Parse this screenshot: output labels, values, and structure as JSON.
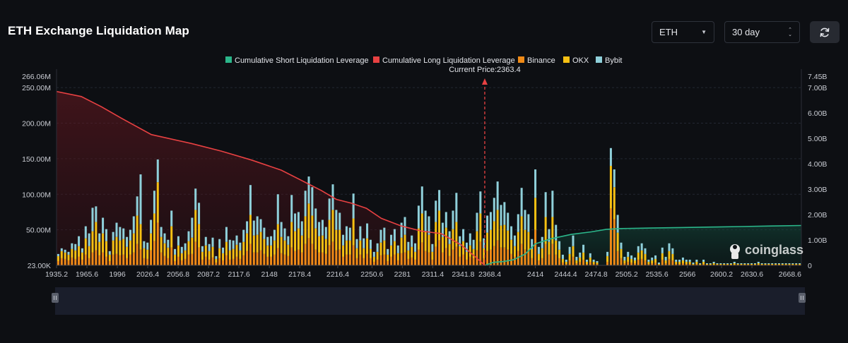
{
  "page": {
    "title": "ETH Exchange Liquidation Map"
  },
  "controls": {
    "symbol": "ETH",
    "period": "30 day",
    "refresh_icon": "refresh-icon",
    "symbol_caret_icon": "chevron-down-icon",
    "period_caret_icon": "up-down-chevron-icon"
  },
  "watermark": {
    "text": "coinglass",
    "icon": "coinglass-logo-icon"
  },
  "colors": {
    "background": "#0d0f13",
    "short_line": "#2bb68a",
    "long_line": "#e84142",
    "binance": "#ef8a17",
    "okx": "#f6c013",
    "bybit": "#8fd0da"
  },
  "chart_data": {
    "type": "bar",
    "stacked": true,
    "legend": [
      "Cumulative Short Liquidation Leverage",
      "Cumulative Long Liquidation Leverage",
      "Binance",
      "OKX",
      "Bybit"
    ],
    "legend_position": "top-center",
    "current_price_label": "Current Price:2363.4",
    "current_price": 2363.4,
    "x_range": [
      1935.2,
      2680
    ],
    "x_ticks": [
      "1935.2",
      "1965.6",
      "1996",
      "2026.4",
      "2056.8",
      "2087.2",
      "2117.6",
      "2148",
      "2178.4",
      "2216.4",
      "2250.6",
      "2281",
      "2311.4",
      "2341.8",
      "2368.4",
      "2414",
      "2444.4",
      "2474.8",
      "2505.2",
      "2535.6",
      "2566",
      "2600.2",
      "2630.6",
      "2668.6"
    ],
    "x_tick_values": [
      1935.2,
      1965.6,
      1996,
      2026.4,
      2056.8,
      2087.2,
      2117.6,
      2148,
      2178.4,
      2216.4,
      2250.6,
      2281,
      2311.4,
      2341.8,
      2368.4,
      2414,
      2444.4,
      2474.8,
      2505.2,
      2535.6,
      2566,
      2600.2,
      2630.6,
      2668.6
    ],
    "y_left_ticks": [
      "266.06M",
      "250.00M",
      "200.00M",
      "150.00M",
      "100.00M",
      "50.00M",
      "23.00K"
    ],
    "y_left_tick_values": [
      266.06,
      250,
      200,
      150,
      100,
      50,
      0
    ],
    "y_left_range": [
      0,
      266.06
    ],
    "y_left_unit": "M",
    "y_right_ticks": [
      "7.45B",
      "7.00B",
      "6.00B",
      "5.00B",
      "4.00B",
      "3.00B",
      "2.00B",
      "1.00B",
      "0"
    ],
    "y_right_tick_values": [
      7.45,
      7,
      6,
      5,
      4,
      3,
      2,
      1,
      0
    ],
    "y_right_range": [
      0,
      7.45
    ],
    "y_right_unit": "B",
    "grid": "horizontal-dashed",
    "series": [
      {
        "name": "Binance",
        "values": [
          6,
          10,
          9,
          7,
          11,
          9,
          12,
          8,
          15,
          10,
          18,
          21,
          14,
          18,
          12,
          6,
          15,
          16,
          14,
          15,
          10,
          15,
          18,
          30,
          22,
          10,
          9,
          21,
          34,
          60,
          18,
          13,
          10,
          25,
          6,
          12,
          7,
          9,
          15,
          16,
          33,
          25,
          8,
          12,
          8,
          11,
          4,
          10,
          7,
          14,
          8,
          9,
          12,
          9,
          14,
          20,
          30,
          18,
          18,
          21,
          16,
          12,
          12,
          15,
          24,
          17,
          15,
          13,
          25,
          20,
          22,
          18,
          30,
          38,
          30,
          22,
          18,
          18,
          16,
          28,
          33,
          21,
          22,
          12,
          15,
          15,
          28,
          10,
          15,
          10,
          16,
          10,
          5,
          8,
          14,
          15,
          6,
          12,
          15,
          7,
          17,
          18,
          9,
          11,
          8,
          22,
          32,
          20,
          18,
          8,
          26,
          35,
          18,
          24,
          13,
          22,
          26,
          12,
          15,
          8,
          12,
          10,
          21,
          33,
          10,
          20,
          22,
          27,
          35,
          25,
          25,
          22,
          16,
          12,
          20,
          30,
          22,
          20,
          10,
          50,
          7,
          10,
          30,
          15,
          30,
          15,
          10,
          4,
          2,
          7,
          12,
          3,
          5,
          8,
          2,
          5,
          2,
          2,
          0,
          0,
          5,
          80,
          65,
          20,
          10,
          3,
          5,
          4,
          3,
          8,
          9,
          7,
          2,
          3,
          4,
          1,
          8,
          3,
          9,
          7,
          2,
          2,
          3,
          2,
          2,
          1,
          2,
          1,
          2,
          1,
          1,
          1,
          1,
          1,
          1,
          1,
          1,
          1,
          1,
          1,
          1,
          1,
          1,
          1,
          1,
          1,
          1,
          1,
          1,
          1,
          1,
          1,
          1,
          1,
          1,
          1,
          1
        ],
        "note": "values in M"
      },
      {
        "name": "OKX",
        "values": [
          7,
          10,
          9,
          8,
          12,
          12,
          15,
          10,
          23,
          17,
          30,
          40,
          19,
          27,
          22,
          9,
          20,
          24,
          21,
          22,
          16,
          20,
          27,
          40,
          36,
          14,
          13,
          24,
          39,
          57,
          22,
          18,
          15,
          30,
          9,
          16,
          10,
          12,
          19,
          23,
          45,
          33,
          11,
          16,
          12,
          15,
          5,
          14,
          10,
          19,
          13,
          14,
          17,
          12,
          19,
          25,
          41,
          24,
          25,
          26,
          21,
          16,
          16,
          20,
          34,
          23,
          20,
          16,
          36,
          28,
          30,
          24,
          39,
          49,
          40,
          30,
          23,
          24,
          21,
          36,
          45,
          29,
          28,
          16,
          20,
          20,
          38,
          14,
          20,
          14,
          22,
          13,
          7,
          11,
          18,
          20,
          9,
          16,
          19,
          10,
          22,
          25,
          12,
          15,
          11,
          30,
          41,
          28,
          25,
          11,
          35,
          42,
          22,
          29,
          17,
          29,
          35,
          15,
          19,
          11,
          16,
          13,
          27,
          40,
          14,
          26,
          28,
          35,
          43,
          31,
          32,
          27,
          20,
          15,
          27,
          39,
          28,
          27,
          13,
          45,
          9,
          14,
          38,
          18,
          38,
          20,
          12,
          5,
          3,
          9,
          15,
          4,
          6,
          10,
          3,
          6,
          3,
          2,
          0,
          0,
          8,
          60,
          45,
          26,
          13,
          4,
          7,
          5,
          4,
          10,
          12,
          9,
          3,
          4,
          5,
          1,
          9,
          4,
          11,
          9,
          3,
          3,
          4,
          3,
          3,
          1,
          3,
          1,
          3,
          1,
          1,
          2,
          1,
          1,
          1,
          1,
          1,
          2,
          1,
          1,
          1,
          1,
          1,
          1,
          2,
          1,
          1,
          1,
          1,
          1,
          1,
          1,
          1,
          1,
          1,
          1,
          1
        ],
        "note": "values in M"
      },
      {
        "name": "Bybit",
        "values": [
          3,
          4,
          4,
          4,
          8,
          9,
          14,
          6,
          17,
          18,
          33,
          22,
          12,
          22,
          17,
          5,
          12,
          20,
          19,
          15,
          14,
          15,
          24,
          27,
          70,
          10,
          10,
          19,
          32,
          32,
          14,
          14,
          11,
          22,
          8,
          13,
          9,
          10,
          14,
          28,
          30,
          30,
          8,
          12,
          10,
          13,
          4,
          13,
          8,
          21,
          15,
          12,
          13,
          11,
          17,
          17,
          42,
          21,
          26,
          18,
          16,
          12,
          13,
          15,
          42,
          21,
          17,
          12,
          38,
          25,
          23,
          20,
          36,
          38,
          40,
          28,
          20,
          22,
          17,
          30,
          36,
          28,
          24,
          15,
          20,
          18,
          35,
          13,
          20,
          14,
          21,
          13,
          7,
          12,
          18,
          18,
          8,
          15,
          17,
          11,
          21,
          25,
          12,
          16,
          12,
          32,
          38,
          29,
          26,
          11,
          30,
          29,
          20,
          22,
          18,
          26,
          41,
          14,
          17,
          13,
          17,
          13,
          26,
          31,
          14,
          24,
          25,
          33,
          40,
          29,
          32,
          25,
          19,
          15,
          25,
          40,
          28,
          25,
          14,
          40,
          10,
          16,
          35,
          18,
          37,
          22,
          12,
          6,
          3,
          10,
          15,
          5,
          7,
          11,
          3,
          6,
          3,
          2,
          0,
          0,
          6,
          25,
          25,
          25,
          9,
          5,
          7,
          5,
          4,
          9,
          10,
          8,
          3,
          4,
          5,
          2,
          8,
          5,
          11,
          8,
          3,
          3,
          4,
          3,
          3,
          2,
          3,
          1,
          3,
          1,
          1,
          2,
          1,
          1,
          1,
          1,
          1,
          2,
          1,
          1,
          1,
          1,
          1,
          1,
          2,
          1,
          1,
          1,
          1,
          1,
          1,
          1,
          1,
          1,
          1,
          1,
          1
        ],
        "note": "values in M"
      },
      {
        "name": "Cumulative Long Liquidation Leverage",
        "x": [
          1935.2,
          1960,
          1980,
          2000,
          2030,
          2070,
          2100,
          2130,
          2160,
          2185,
          2200,
          2215,
          2230,
          2245,
          2260,
          2280,
          2300,
          2320,
          2340,
          2355,
          2363.4
        ],
        "values": [
          6.85,
          6.65,
          6.25,
          5.8,
          5.15,
          4.8,
          4.5,
          4.15,
          3.75,
          3.25,
          2.95,
          2.6,
          2.45,
          2.25,
          1.85,
          1.55,
          1.35,
          1.25,
          0.8,
          0.3,
          0.0
        ],
        "note": "values in B"
      },
      {
        "name": "Cumulative Short Liquidation Leverage",
        "x": [
          2363.4,
          2372,
          2382,
          2392,
          2404,
          2414,
          2430,
          2450,
          2470,
          2485,
          2500,
          2530,
          2560,
          2590,
          2620,
          2650,
          2680
        ],
        "values": [
          0.0,
          0.12,
          0.15,
          0.22,
          0.45,
          0.85,
          1.05,
          1.22,
          1.32,
          1.42,
          1.45,
          1.47,
          1.49,
          1.51,
          1.53,
          1.55,
          1.57
        ],
        "note": "values in B"
      }
    ]
  }
}
